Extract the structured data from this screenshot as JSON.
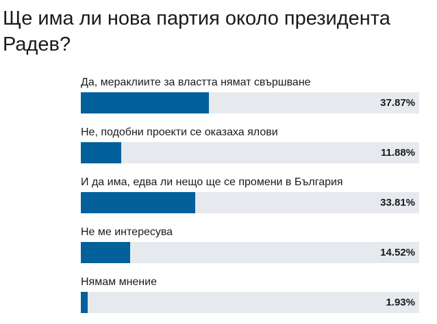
{
  "poll": {
    "title": "Ще има ли нова партия около президента Радев?",
    "colors": {
      "fill": "#02609a",
      "track": "#e6e9ee",
      "text": "#1a1a1a"
    },
    "options": [
      {
        "label": "Да, мераклиите за властта нямат свършване",
        "percent_label": "37.87%",
        "percent": 37.87
      },
      {
        "label": "Не, подобни проекти се оказаха ялови",
        "percent_label": "11.88%",
        "percent": 11.88
      },
      {
        "label": "И да има, едва ли нещо ще се промени в България",
        "percent_label": "33.81%",
        "percent": 33.81
      },
      {
        "label": "Не ме интересува",
        "percent_label": "14.52%",
        "percent": 14.52
      },
      {
        "label": "Нямам мнение",
        "percent_label": "1.93%",
        "percent": 1.93
      }
    ]
  }
}
